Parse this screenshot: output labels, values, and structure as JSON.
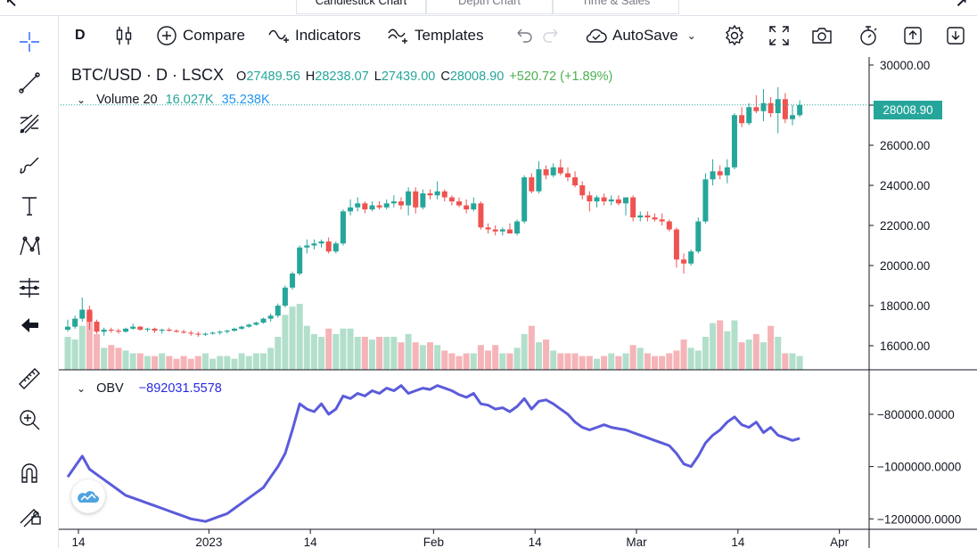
{
  "tabs": [
    {
      "label": "Candlestick Chart",
      "active": true
    },
    {
      "label": "Depth Chart",
      "active": false
    },
    {
      "label": "Time & Sales",
      "active": false
    }
  ],
  "toolbar": {
    "interval": "D",
    "compare": "Compare",
    "indicators": "Indicators",
    "templates": "Templates",
    "autosave": "AutoSave"
  },
  "legend": {
    "symbol": "BTC/USD · D · LSCX",
    "open_label": "O",
    "open": "27489.56",
    "high_label": "H",
    "high": "28238.07",
    "low_label": "L",
    "low": "27439.00",
    "close_label": "C",
    "close": "28008.90",
    "change": "+520.72 (+1.89%)"
  },
  "volume": {
    "name": "Volume 20",
    "value1": "16.027K",
    "value2": "35.238K"
  },
  "obv": {
    "name": "OBV",
    "value": "−892031.5578"
  },
  "last_price_label": "28008.90",
  "colors": {
    "up": "#26a69a",
    "down": "#ef5350",
    "obv": "#5b5bdb",
    "vol_up": "#b2dfcb",
    "vol_down": "#f5b4b8"
  },
  "chart_data": {
    "type": "candlestick",
    "symbol": "BTC/USD",
    "interval": "D",
    "price_axis": {
      "ticks": [
        "30000.00",
        "28000.00",
        "26000.00",
        "24000.00",
        "22000.00",
        "20000.00",
        "18000.00",
        "16000.00"
      ],
      "tick_values": [
        30000,
        28000,
        26000,
        24000,
        22000,
        20000,
        18000,
        16000
      ],
      "range": [
        14800,
        30400
      ]
    },
    "obv_axis": {
      "ticks": [
        "−800000.0000",
        "−1000000.0000",
        "−1200000.0000"
      ],
      "tick_values": [
        -800000,
        -1000000,
        -1200000
      ],
      "range": [
        -1240000,
        -640000
      ]
    },
    "time_axis": {
      "labels": [
        "14",
        "2023",
        "14",
        "Feb",
        "14",
        "Mar",
        "14",
        "Apr"
      ],
      "label_days": [
        0,
        18,
        32,
        49,
        63,
        77,
        91,
        105
      ]
    },
    "candles": [
      [
        16800,
        17300,
        16700,
        16950
      ],
      [
        16950,
        17500,
        16850,
        17350
      ],
      [
        17350,
        18400,
        17200,
        17800
      ],
      [
        17800,
        18000,
        16800,
        17200
      ],
      [
        17200,
        17300,
        16600,
        16700
      ],
      [
        16700,
        16900,
        16500,
        16800
      ],
      [
        16800,
        16900,
        16650,
        16750
      ],
      [
        16750,
        16850,
        16600,
        16700
      ],
      [
        16700,
        16900,
        16650,
        16850
      ],
      [
        16850,
        17100,
        16800,
        16950
      ],
      [
        16950,
        16980,
        16750,
        16800
      ],
      [
        16800,
        16900,
        16700,
        16850
      ],
      [
        16850,
        16900,
        16650,
        16750
      ],
      [
        16750,
        16850,
        16600,
        16800
      ],
      [
        16800,
        16900,
        16700,
        16750
      ],
      [
        16750,
        16820,
        16650,
        16700
      ],
      [
        16700,
        16800,
        16600,
        16650
      ],
      [
        16650,
        16750,
        16500,
        16600
      ],
      [
        16600,
        16700,
        16450,
        16550
      ],
      [
        16550,
        16650,
        16480,
        16600
      ],
      [
        16600,
        16700,
        16550,
        16650
      ],
      [
        16650,
        16750,
        16550,
        16700
      ],
      [
        16700,
        16800,
        16600,
        16750
      ],
      [
        16750,
        16900,
        16700,
        16850
      ],
      [
        16850,
        17000,
        16800,
        16950
      ],
      [
        16950,
        17100,
        16900,
        17050
      ],
      [
        17050,
        17200,
        17000,
        17150
      ],
      [
        17150,
        17400,
        17100,
        17350
      ],
      [
        17350,
        17600,
        17200,
        17500
      ],
      [
        17500,
        18100,
        17400,
        18000
      ],
      [
        18000,
        19000,
        17900,
        18900
      ],
      [
        18900,
        19700,
        18800,
        19600
      ],
      [
        19600,
        21000,
        19500,
        20900
      ],
      [
        20900,
        21300,
        20600,
        21000
      ],
      [
        21000,
        21300,
        20800,
        21100
      ],
      [
        21100,
        21300,
        20900,
        21200
      ],
      [
        21200,
        21400,
        20600,
        20700
      ],
      [
        20700,
        21200,
        20600,
        21100
      ],
      [
        21100,
        22800,
        21000,
        22700
      ],
      [
        22700,
        23300,
        22500,
        22900
      ],
      [
        22900,
        23400,
        22700,
        23100
      ],
      [
        23100,
        23200,
        22600,
        22800
      ],
      [
        22800,
        23200,
        22700,
        23000
      ],
      [
        23000,
        23200,
        22800,
        22900
      ],
      [
        22900,
        23300,
        22800,
        23100
      ],
      [
        23100,
        23500,
        22900,
        23200
      ],
      [
        23200,
        23400,
        22800,
        23000
      ],
      [
        23000,
        23900,
        22500,
        23700
      ],
      [
        23700,
        23900,
        22600,
        22900
      ],
      [
        22900,
        23800,
        22800,
        23600
      ],
      [
        23600,
        23800,
        23300,
        23500
      ],
      [
        23500,
        24200,
        23300,
        23700
      ],
      [
        23700,
        23800,
        23200,
        23400
      ],
      [
        23400,
        23500,
        23000,
        23200
      ],
      [
        23200,
        23400,
        22900,
        23000
      ],
      [
        23000,
        23300,
        22600,
        22800
      ],
      [
        22800,
        23400,
        22700,
        23100
      ],
      [
        23100,
        23200,
        21800,
        21900
      ],
      [
        21900,
        22100,
        21600,
        21800
      ],
      [
        21800,
        22000,
        21500,
        21700
      ],
      [
        21700,
        21900,
        21500,
        21800
      ],
      [
        21800,
        22100,
        21600,
        21600
      ],
      [
        21600,
        22300,
        21500,
        22200
      ],
      [
        22200,
        24500,
        22100,
        24400
      ],
      [
        24400,
        24600,
        23600,
        23700
      ],
      [
        23700,
        25200,
        23600,
        24800
      ],
      [
        24800,
        25000,
        24300,
        24500
      ],
      [
        24500,
        25100,
        24400,
        24900
      ],
      [
        24900,
        25300,
        24500,
        24600
      ],
      [
        24600,
        24900,
        24200,
        24400
      ],
      [
        24400,
        24700,
        23900,
        24000
      ],
      [
        24000,
        24200,
        23300,
        23500
      ],
      [
        23500,
        23700,
        22700,
        23200
      ],
      [
        23200,
        23500,
        22900,
        23400
      ],
      [
        23400,
        23600,
        23000,
        23200
      ],
      [
        23200,
        23500,
        23000,
        23300
      ],
      [
        23300,
        23500,
        23000,
        23100
      ],
      [
        23100,
        23300,
        22500,
        23400
      ],
      [
        23400,
        23500,
        22200,
        22400
      ],
      [
        22400,
        22700,
        22200,
        22500
      ],
      [
        22500,
        22700,
        22200,
        22400
      ],
      [
        22400,
        22600,
        22200,
        22300
      ],
      [
        22300,
        22600,
        22000,
        22200
      ],
      [
        22200,
        22300,
        21700,
        21800
      ],
      [
        21800,
        21900,
        19900,
        20300
      ],
      [
        20300,
        20600,
        19600,
        20100
      ],
      [
        20100,
        20800,
        20000,
        20700
      ],
      [
        20700,
        22400,
        20600,
        22200
      ],
      [
        22200,
        24600,
        22100,
        24300
      ],
      [
        24300,
        25300,
        24000,
        24700
      ],
      [
        24700,
        25000,
        24300,
        24500
      ],
      [
        24500,
        25300,
        24100,
        24900
      ],
      [
        24900,
        27600,
        24800,
        27500
      ],
      [
        27500,
        27900,
        26900,
        27100
      ],
      [
        27100,
        28100,
        27000,
        27900
      ],
      [
        27900,
        28500,
        27600,
        27700
      ],
      [
        27700,
        28800,
        27200,
        28100
      ],
      [
        28100,
        28400,
        27400,
        27600
      ],
      [
        27600,
        28900,
        26600,
        28300
      ],
      [
        28300,
        28600,
        27100,
        27300
      ],
      [
        27300,
        28000,
        27000,
        27500
      ],
      [
        27500,
        28240,
        27400,
        28008.9
      ]
    ],
    "volume": [
      12,
      11,
      16,
      21,
      13,
      8,
      9,
      8,
      7,
      6,
      6,
      5,
      5,
      6,
      5,
      4,
      5,
      4,
      5,
      6,
      4,
      5,
      5,
      4,
      6,
      5,
      6,
      6,
      8,
      12,
      20,
      23,
      24,
      16,
      13,
      12,
      15,
      13,
      15,
      15,
      12,
      12,
      11,
      12,
      12,
      12,
      10,
      13,
      10,
      9,
      10,
      9,
      7,
      6,
      5,
      6,
      6,
      9,
      7,
      9,
      6,
      6,
      8,
      13,
      16,
      10,
      11,
      7,
      6,
      6,
      6,
      5,
      5,
      4,
      5,
      6,
      5,
      6,
      9,
      8,
      6,
      5,
      5,
      6,
      7,
      11,
      8,
      7,
      12,
      17,
      18,
      14,
      18,
      10,
      11,
      13,
      10,
      16,
      12,
      6,
      6,
      5
    ],
    "obv": [
      -1040000,
      -1000000,
      -960000,
      -1010000,
      -1030000,
      -1050000,
      -1070000,
      -1090000,
      -1110000,
      -1120000,
      -1130000,
      -1140000,
      -1150000,
      -1160000,
      -1170000,
      -1180000,
      -1190000,
      -1200000,
      -1205000,
      -1210000,
      -1200000,
      -1190000,
      -1180000,
      -1160000,
      -1140000,
      -1120000,
      -1100000,
      -1080000,
      -1040000,
      -1000000,
      -950000,
      -860000,
      -760000,
      -780000,
      -790000,
      -760000,
      -800000,
      -780000,
      -730000,
      -740000,
      -720000,
      -730000,
      -710000,
      -720000,
      -700000,
      -710000,
      -690000,
      -720000,
      -710000,
      -700000,
      -705000,
      -690000,
      -700000,
      -710000,
      -725000,
      -735000,
      -720000,
      -760000,
      -765000,
      -780000,
      -775000,
      -790000,
      -770000,
      -740000,
      -780000,
      -750000,
      -745000,
      -760000,
      -780000,
      -800000,
      -830000,
      -850000,
      -860000,
      -850000,
      -840000,
      -850000,
      -855000,
      -860000,
      -870000,
      -880000,
      -890000,
      -900000,
      -910000,
      -920000,
      -950000,
      -990000,
      -1000000,
      -960000,
      -910000,
      -880000,
      -860000,
      -830000,
      -810000,
      -840000,
      -850000,
      -830000,
      -870000,
      -850000,
      -880000,
      -890000,
      -900000,
      -892031.5578
    ]
  }
}
